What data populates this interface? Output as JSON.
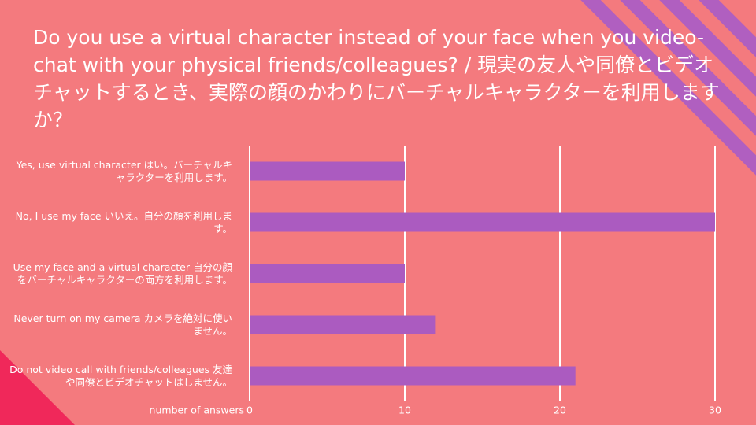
{
  "chart_data": {
    "type": "hbar",
    "title": "Do you use a virtual character instead of your face when you video-chat with your physical friends/colleagues? / 現実の友人や同僚とビデオチャットするとき、実際の顔のかわりにバーチャルキャラクターを利用しますか？",
    "x_label": "number of answers",
    "categories": [
      "Yes, use virtual character  はい。バーチャルキャラクターを利用します。",
      "No, I use my face いいえ。自分の顔を利用します。",
      "Use my face and a virtual character 自分の顔をバーチャルキャラクターの両方を利用します。",
      "Never turn on my camera カメラを絶対に使いません。",
      "Do not video call with friends/colleagues 友達や同僚とビデオチャットはしません。"
    ],
    "values": [
      10,
      30,
      10,
      12,
      21
    ],
    "color": "#ab5bc0",
    "xlim": [
      0,
      30
    ],
    "xticks": [
      0,
      10,
      20,
      30
    ],
    "grid": true
  }
}
